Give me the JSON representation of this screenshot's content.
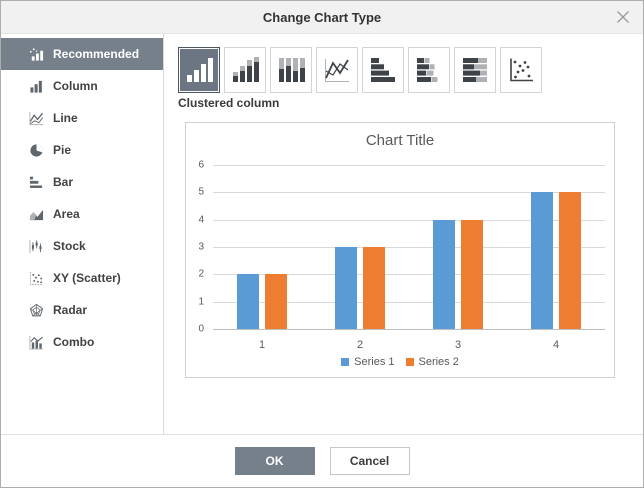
{
  "dialog": {
    "title": "Change Chart Type"
  },
  "sidebar": {
    "items": [
      {
        "label": "Recommended",
        "icon": "recommended-icon",
        "selected": true
      },
      {
        "label": "Column",
        "icon": "column-icon",
        "selected": false
      },
      {
        "label": "Line",
        "icon": "line-icon",
        "selected": false
      },
      {
        "label": "Pie",
        "icon": "pie-icon",
        "selected": false
      },
      {
        "label": "Bar",
        "icon": "bar-icon",
        "selected": false
      },
      {
        "label": "Area",
        "icon": "area-icon",
        "selected": false
      },
      {
        "label": "Stock",
        "icon": "stock-icon",
        "selected": false
      },
      {
        "label": "XY (Scatter)",
        "icon": "scatter-icon",
        "selected": false
      },
      {
        "label": "Radar",
        "icon": "radar-icon",
        "selected": false
      },
      {
        "label": "Combo",
        "icon": "combo-icon",
        "selected": false
      }
    ]
  },
  "subtypes": {
    "selected_label": "Clustered column",
    "items": [
      {
        "name": "clustered-column",
        "selected": true
      },
      {
        "name": "stacked-column",
        "selected": false
      },
      {
        "name": "stacked-column-100",
        "selected": false
      },
      {
        "name": "line",
        "selected": false
      },
      {
        "name": "clustered-bar",
        "selected": false
      },
      {
        "name": "stacked-bar",
        "selected": false
      },
      {
        "name": "stacked-bar-100",
        "selected": false
      },
      {
        "name": "scatter",
        "selected": false
      }
    ]
  },
  "chart_data": {
    "type": "bar",
    "title": "Chart Title",
    "categories": [
      "1",
      "2",
      "3",
      "4"
    ],
    "series": [
      {
        "name": "Series 1",
        "color": "#5B9BD5",
        "values": [
          2,
          3,
          4,
          5
        ]
      },
      {
        "name": "Series 2",
        "color": "#ED7D31",
        "values": [
          2,
          3,
          4,
          5
        ]
      }
    ],
    "ylim": [
      0,
      6
    ],
    "ytick_step": 1,
    "grid": true,
    "legend_position": "bottom"
  },
  "footer": {
    "ok_label": "OK",
    "cancel_label": "Cancel"
  },
  "colors": {
    "accent_slate": "#76808A",
    "subtype_selected_bg": "#6C7682",
    "titlebar_bg": "#F1F1F1",
    "chart_text_gray": "#595959",
    "gridline_gray": "#D9D9D9",
    "axis_gray": "#BFBFBF",
    "icon_dark": "#3E4347",
    "icon_gray": "#AFB1B4",
    "series1_blue": "#5B9BD5",
    "series2_orange": "#ED7D31"
  }
}
